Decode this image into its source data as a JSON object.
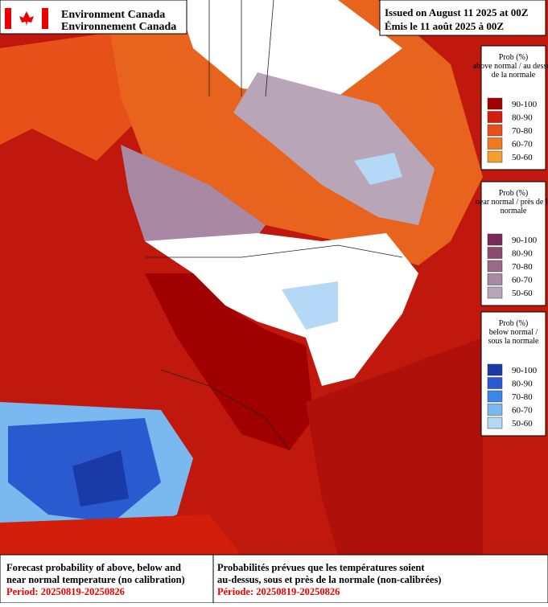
{
  "header": {
    "agency_en": "Environment Canada",
    "agency_fr": "Environnement Canada",
    "issued_en": "Issued on August 11 2025 at 00Z",
    "issued_fr": "Émis le 11 août 2025 à 00Z"
  },
  "legends": [
    {
      "title": [
        "Prob (%)",
        "above normal / au dessus",
        "de la normale"
      ],
      "items": [
        {
          "label": "90-100",
          "color": "#a00000"
        },
        {
          "label": "80-90",
          "color": "#d21e0a"
        },
        {
          "label": "70-80",
          "color": "#e8501a"
        },
        {
          "label": "60-70",
          "color": "#f07a20"
        },
        {
          "label": "50-60",
          "color": "#f4a030"
        }
      ]
    },
    {
      "title": [
        "Prob (%)",
        "near normal / près de la",
        "normale"
      ],
      "items": [
        {
          "label": "90-100",
          "color": "#7a2a5a"
        },
        {
          "label": "80-90",
          "color": "#8c4a72"
        },
        {
          "label": "70-80",
          "color": "#9a6a8a"
        },
        {
          "label": "60-70",
          "color": "#a888a2"
        },
        {
          "label": "50-60",
          "color": "#b8a6b8"
        }
      ]
    },
    {
      "title": [
        "Prob (%)",
        "below normal /",
        "sous la normale"
      ],
      "items": [
        {
          "label": "90-100",
          "color": "#1a3aa8"
        },
        {
          "label": "80-90",
          "color": "#2a5ad0"
        },
        {
          "label": "70-80",
          "color": "#3c88e8"
        },
        {
          "label": "60-70",
          "color": "#7ab8f0"
        },
        {
          "label": "50-60",
          "color": "#b4d8f6"
        }
      ]
    }
  ],
  "footer": {
    "en_text": [
      "Forecast probability of above, below and",
      "near normal temperature (no calibration)"
    ],
    "en_period": "Period: 20250819-20250826",
    "fr_text": [
      "Probabilités prévues que les températures soient",
      "au-dessus, sous et près de la normale (non-calibrées)"
    ],
    "fr_period": "Période: 20250819-20250826"
  }
}
